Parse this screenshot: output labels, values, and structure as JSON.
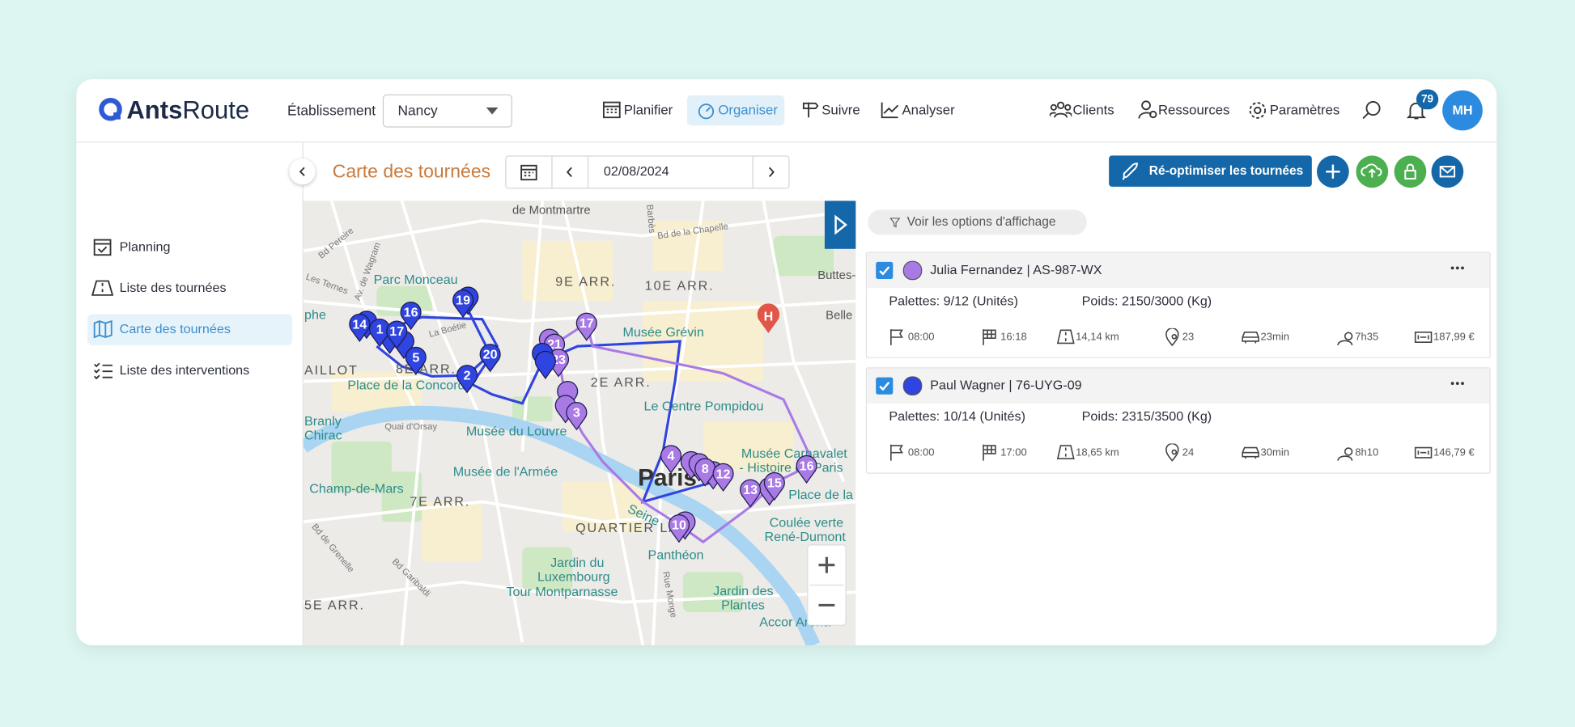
{
  "header": {
    "logo_main": "Ants",
    "logo_accent": "Route",
    "establishment_label": "Établissement",
    "establishment_value": "Nancy",
    "nav": [
      "Planifier",
      "Organiser",
      "Suivre",
      "Analyser"
    ],
    "right_nav": [
      "Clients",
      "Ressources",
      "Paramètres"
    ],
    "notification_count": "79",
    "avatar": "MH"
  },
  "sidebar": {
    "items": [
      "Planning",
      "Liste des tournées",
      "Carte des tournées",
      "Liste des interventions"
    ]
  },
  "toolbar": {
    "title": "Carte des tournées",
    "date": "02/08/2024",
    "reoptimize": "Ré-optimiser les tournées"
  },
  "panel": {
    "display_options": "Voir les options d'affichage",
    "routes": [
      {
        "name": "Julia Fernandez | AS-987-WX",
        "color": "#a97ae6",
        "pallets": "Palettes: 9/12 (Unités)",
        "weight": "Poids: 2150/3000 (Kg)",
        "stats": [
          "08:00",
          "16:18",
          "14,14 km",
          "23",
          "23min",
          "7h35",
          "187,99 €"
        ]
      },
      {
        "name": "Paul Wagner | 76-UYG-09",
        "color": "#2f44e0",
        "pallets": "Palettes: 10/14 (Unités)",
        "weight": "Poids: 2315/3500 (Kg)",
        "stats": [
          "08:00",
          "17:00",
          "18,65 km",
          "24",
          "30min",
          "8h10",
          "146,79 €"
        ]
      }
    ]
  },
  "map": {
    "labels": [
      "de Montmartre",
      "Bd de la Chapelle",
      "Parc Monceau",
      "9E ARR.",
      "10E ARR.",
      "Musée Grévin",
      "8E ARR.",
      "Place de la Concorde",
      "2E ARR.",
      "Le Centre Pompidou",
      "Musée du Louvre",
      "Quai d'Orsay",
      "Branly",
      "Chirac",
      "Musée de l'Armée",
      "Champ-de-Mars",
      "7E ARR.",
      "Musée Carnavalet",
      "- Histoire de Paris",
      "Paris",
      "Place de la B",
      "QUARTIER LAT",
      "Coulée verte",
      "René-Dumont",
      "Panthéon",
      "Jardin du",
      "Luxembourg",
      "Tour Montparnasse",
      "Jardin des",
      "Plantes",
      "Accor Arena",
      "5E ARR.",
      "AILLOT",
      "phe",
      "Seine",
      "Buttes-Chau",
      "Belle",
      "Av. de Wagram",
      "Bd Pereire",
      "Rue Monge",
      "La Boétie",
      "Bd Garibaldi",
      "Bd de Grenelle",
      "Les Ternes",
      "Barbès"
    ],
    "purple_markers": [
      "17",
      "21",
      "23",
      "3",
      "4",
      "8",
      "12",
      "13",
      "15",
      "16",
      "10"
    ],
    "blue_markers": [
      "19",
      "16",
      "14",
      "1",
      "17",
      "5",
      "2",
      "20"
    ]
  }
}
